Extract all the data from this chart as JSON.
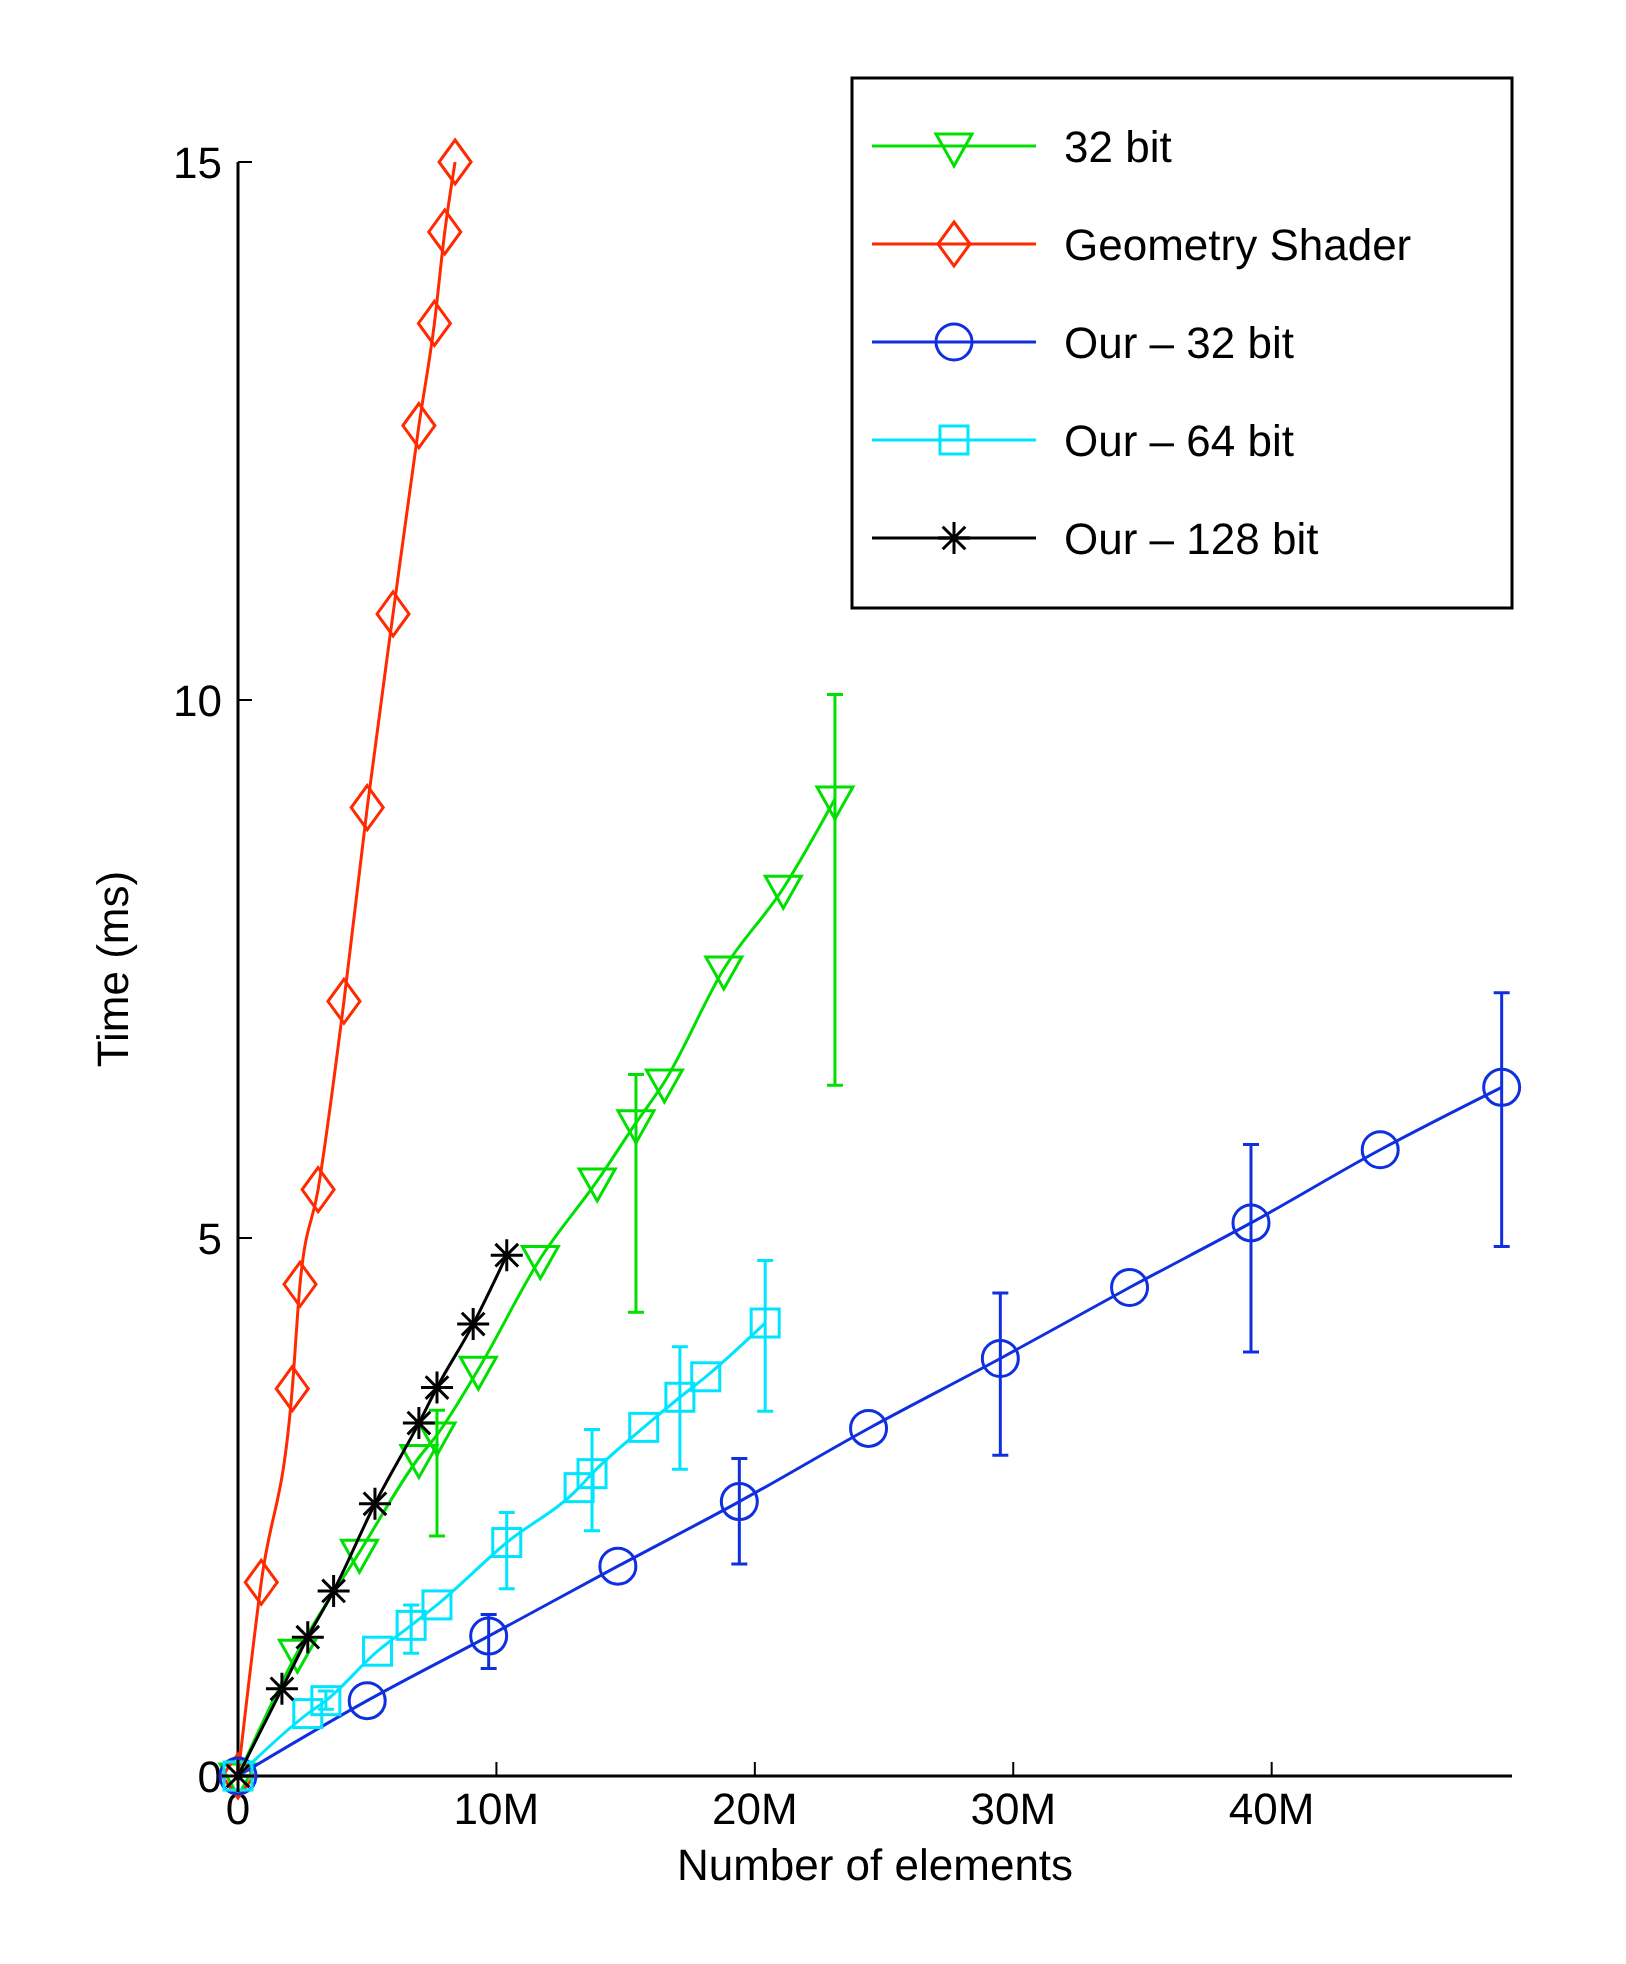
{
  "chart_data": {
    "type": "line",
    "xlabel": "Number of elements",
    "ylabel": "Time (ms)",
    "xlim": [
      0,
      49.3
    ],
    "ylim": [
      0,
      15
    ],
    "xticks": [
      0,
      {
        "value": 10,
        "label": "10M"
      },
      {
        "value": 20,
        "label": "20M"
      },
      {
        "value": 30,
        "label": "30M"
      },
      {
        "value": 40,
        "label": "40M"
      }
    ],
    "yticks": [
      0,
      5,
      10,
      15
    ],
    "grid": false,
    "legend": "top right",
    "line_style": "solid",
    "series": [
      {
        "name": "32 bit",
        "color": "#00e000",
        "marker": "triangle",
        "x": [
          0,
          2.3,
          4.7,
          7.0,
          7.7,
          9.3,
          11.7,
          13.9,
          15.4,
          16.5,
          18.8,
          21.1,
          23.1
        ],
        "values": [
          0,
          1.15,
          2.08,
          2.96,
          3.17,
          3.78,
          4.81,
          5.53,
          6.07,
          6.45,
          7.5,
          8.25,
          9.08
        ],
        "errors": [
          null,
          null,
          null,
          null,
          [
            2.23,
            3.4
          ],
          null,
          null,
          null,
          [
            4.31,
            6.52
          ],
          null,
          null,
          null,
          [
            6.42,
            10.05
          ]
        ]
      },
      {
        "name": "Geometry Shader",
        "color": "#ff2a00",
        "marker": "diamond",
        "x": [
          0,
          0.9,
          2.1,
          2.4,
          3.1,
          4.1,
          5.0,
          6.0,
          7.0,
          7.6,
          8.0,
          8.4
        ],
        "values": [
          0,
          1.8,
          3.6,
          4.57,
          5.45,
          7.2,
          9.0,
          10.8,
          12.55,
          13.5,
          14.35,
          15.0
        ]
      },
      {
        "name": "Our – 32 bit",
        "color": "#1030e0",
        "marker": "circle",
        "x": [
          0,
          5.0,
          9.7,
          14.7,
          19.4,
          24.4,
          29.5,
          34.5,
          39.2,
          44.2,
          48.9
        ],
        "values": [
          0,
          0.7,
          1.3,
          1.95,
          2.55,
          3.23,
          3.88,
          4.54,
          5.14,
          5.82,
          6.4
        ],
        "errors": [
          null,
          null,
          [
            1.0,
            1.5
          ],
          null,
          [
            1.97,
            2.95
          ],
          null,
          [
            2.98,
            4.49
          ],
          null,
          [
            3.94,
            5.87
          ],
          null,
          [
            4.92,
            7.28
          ]
        ]
      },
      {
        "name": "Our – 64 bit",
        "color": "#00e5ff",
        "marker": "square",
        "x": [
          0,
          2.7,
          3.4,
          5.4,
          6.7,
          7.7,
          10.4,
          13.2,
          13.7,
          15.7,
          17.1,
          18.1,
          20.4
        ],
        "values": [
          0,
          0.58,
          0.7,
          1.16,
          1.4,
          1.59,
          2.17,
          2.68,
          2.81,
          3.24,
          3.52,
          3.71,
          4.21
        ],
        "errors": [
          null,
          null,
          [
            0.62,
            0.79
          ],
          null,
          [
            1.14,
            1.59
          ],
          null,
          [
            1.74,
            2.45
          ],
          null,
          [
            2.28,
            3.22
          ],
          null,
          [
            2.85,
            3.99
          ],
          null,
          [
            3.39,
            4.79
          ]
        ]
      },
      {
        "name": "Our – 128 bit",
        "color": "#000000",
        "marker": "cross",
        "x": [
          0,
          1.7,
          2.7,
          3.7,
          5.3,
          7.0,
          7.7,
          9.1,
          10.4
        ],
        "values": [
          0,
          0.81,
          1.29,
          1.72,
          2.53,
          3.28,
          3.61,
          4.2,
          4.84
        ]
      }
    ]
  }
}
